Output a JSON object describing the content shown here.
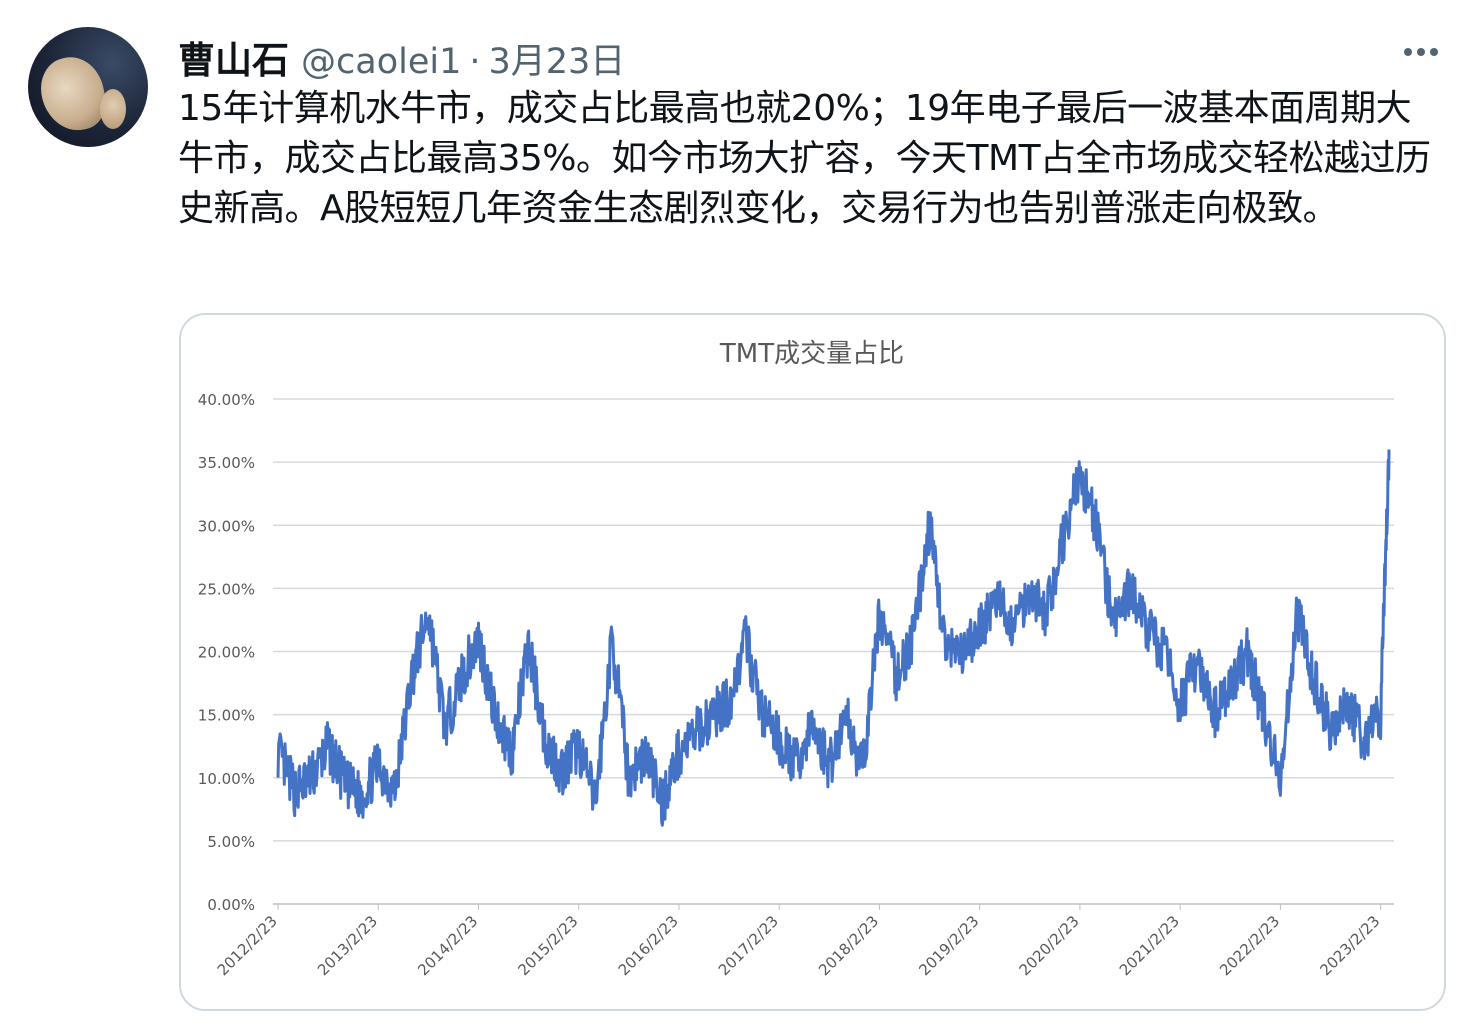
{
  "tweet": {
    "author_name": "曹山石",
    "handle": "@caolei1",
    "separator": "·",
    "date": "3月23日",
    "text": "15年计算机水牛市，成交占比最高也就20%；19年电子最后一波基本面周期大牛市，成交占比最高35%。如今市场大扩容，今天TMT占全市场成交轻松越过历史新高。A股短短几年资金生态剧烈变化，交易行为也告别普涨走向极致。"
  },
  "icons": {
    "avatar": "profile-avatar",
    "more": "more-horizontal-icon"
  },
  "chart_data": {
    "type": "line",
    "title": "TMT成交量占比",
    "xlabel": "",
    "ylabel": "",
    "ylim": [
      0,
      0.4
    ],
    "grid": true,
    "legend": "none",
    "line_color": "#4472c4",
    "y_ticks": [
      "0.00%",
      "5.00%",
      "10.00%",
      "15.00%",
      "20.00%",
      "25.00%",
      "30.00%",
      "35.00%",
      "40.00%"
    ],
    "x_ticks": [
      "2012/2/23",
      "2013/2/23",
      "2014/2/23",
      "2015/2/23",
      "2016/2/23",
      "2017/2/23",
      "2018/2/23",
      "2019/2/23",
      "2020/2/23",
      "2021/2/23",
      "2022/2/23",
      "2023/2/23"
    ],
    "series": [
      {
        "x": [
          "2012-02",
          "2012-04",
          "2012-06",
          "2012-08",
          "2012-10",
          "2012-12",
          "2013-02",
          "2013-04",
          "2013-06",
          "2013-08",
          "2013-10",
          "2013-12",
          "2014-02",
          "2014-04",
          "2014-06",
          "2014-08",
          "2014-10",
          "2014-12",
          "2015-02",
          "2015-04",
          "2015-06",
          "2015-08",
          "2015-10",
          "2015-12",
          "2016-02",
          "2016-04",
          "2016-06",
          "2016-08",
          "2016-10",
          "2016-12",
          "2017-02",
          "2017-04",
          "2017-06",
          "2017-08",
          "2017-10",
          "2017-12",
          "2018-02",
          "2018-04",
          "2018-06",
          "2018-08",
          "2018-10",
          "2018-12",
          "2019-02",
          "2019-04",
          "2019-06",
          "2019-08",
          "2019-10",
          "2019-12",
          "2020-02",
          "2020-04",
          "2020-06",
          "2020-08",
          "2020-10",
          "2020-12",
          "2021-02",
          "2021-04",
          "2021-06",
          "2021-08",
          "2021-10",
          "2021-12",
          "2022-02",
          "2022-04",
          "2022-06",
          "2022-08",
          "2022-10",
          "2022-12",
          "2023-02",
          "2023-03"
        ],
        "values": [
          0.12,
          0.09,
          0.1,
          0.125,
          0.095,
          0.085,
          0.11,
          0.09,
          0.18,
          0.23,
          0.14,
          0.18,
          0.21,
          0.15,
          0.12,
          0.205,
          0.13,
          0.105,
          0.125,
          0.08,
          0.21,
          0.1,
          0.12,
          0.08,
          0.12,
          0.135,
          0.15,
          0.16,
          0.21,
          0.15,
          0.13,
          0.11,
          0.14,
          0.11,
          0.15,
          0.105,
          0.23,
          0.18,
          0.21,
          0.3,
          0.2,
          0.195,
          0.22,
          0.24,
          0.22,
          0.25,
          0.23,
          0.29,
          0.34,
          0.3,
          0.22,
          0.25,
          0.22,
          0.2,
          0.16,
          0.19,
          0.15,
          0.17,
          0.2,
          0.15,
          0.1,
          0.23,
          0.18,
          0.14,
          0.16,
          0.13,
          0.15,
          0.36
        ]
      }
    ]
  }
}
